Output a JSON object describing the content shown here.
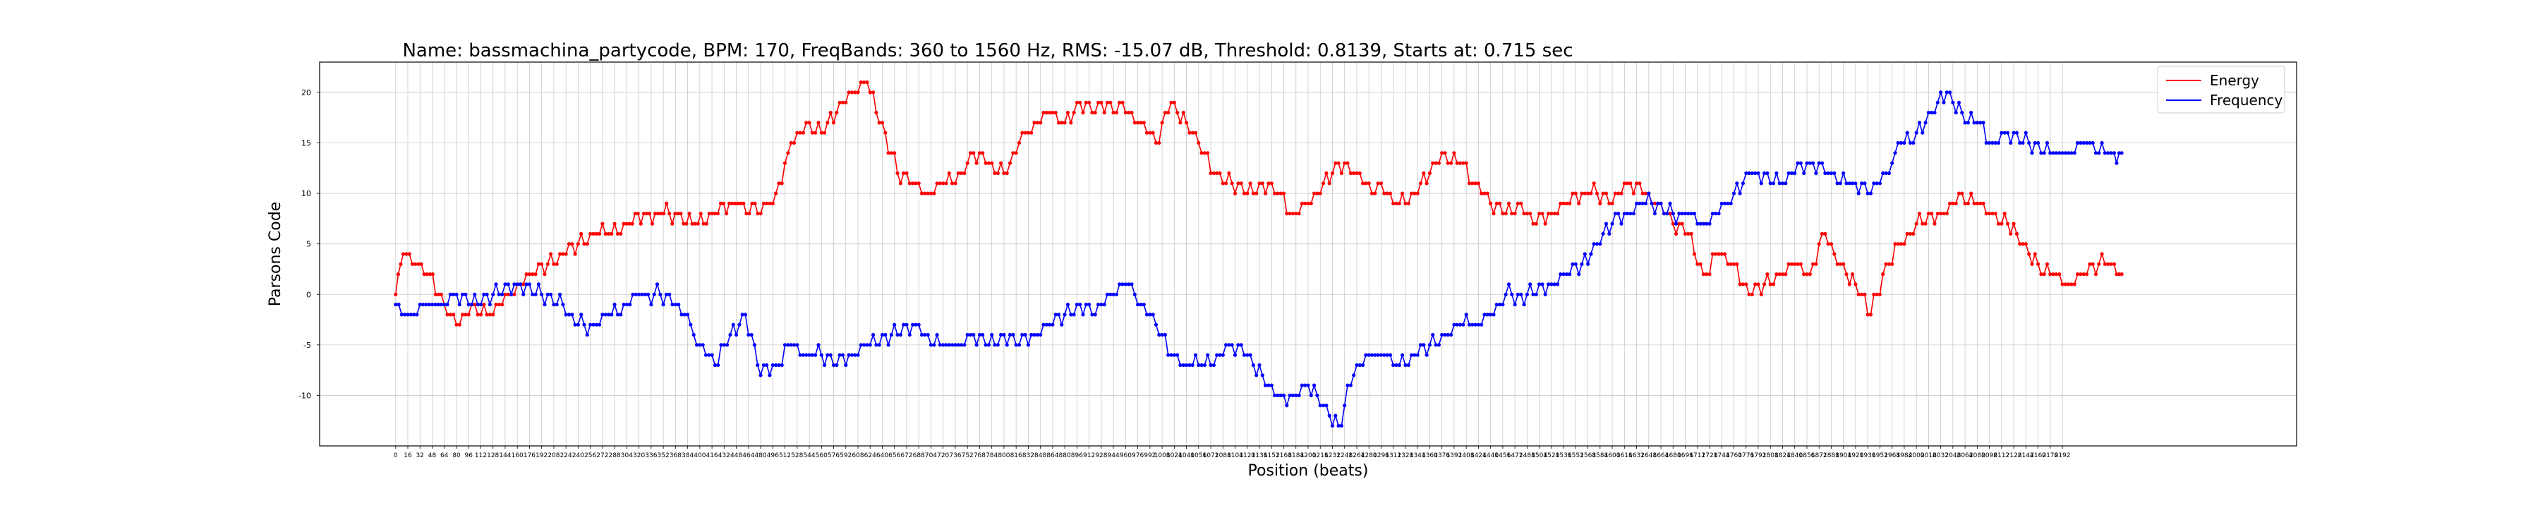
{
  "colors": {
    "energy": "#ff0000",
    "frequency": "#0000ff",
    "grid": "#c8c8c8",
    "axes": "#000000"
  },
  "legend": {
    "placement": "top-right",
    "entries": [
      "Energy",
      "Frequency"
    ]
  },
  "chart_data": {
    "type": "line",
    "title": "Name: bassmachina_partycode, BPM: 170, FreqBands: 360 to 1560 Hz, RMS: -15.07 dB, Threshold: 0.8139, Starts at: 0.715 sec",
    "xlabel": "Position (beats)",
    "ylabel": "Parsons Code",
    "xlim": [
      -100,
      2500
    ],
    "ylim": [
      -15,
      23
    ],
    "grid": true,
    "marker": "dot",
    "yticks": [
      -10,
      -5,
      0,
      5,
      10,
      15,
      20
    ],
    "xtick_step": 16,
    "xtick_max": 2192,
    "series": [
      {
        "name": "Energy",
        "color": "#ff0000",
        "points": [
          [
            0,
            0
          ],
          [
            10,
            4
          ],
          [
            30,
            3
          ],
          [
            45,
            2
          ],
          [
            60,
            0
          ],
          [
            80,
            -3
          ],
          [
            100,
            -1
          ],
          [
            120,
            -2
          ],
          [
            140,
            -1
          ],
          [
            160,
            1
          ],
          [
            180,
            2
          ],
          [
            200,
            3
          ],
          [
            220,
            4
          ],
          [
            240,
            5
          ],
          [
            260,
            6
          ],
          [
            280,
            6
          ],
          [
            300,
            7
          ],
          [
            330,
            8
          ],
          [
            360,
            8
          ],
          [
            390,
            7
          ],
          [
            420,
            8
          ],
          [
            450,
            9
          ],
          [
            480,
            8
          ],
          [
            500,
            10
          ],
          [
            520,
            15
          ],
          [
            540,
            17
          ],
          [
            560,
            16
          ],
          [
            580,
            18
          ],
          [
            600,
            20
          ],
          [
            620,
            21
          ],
          [
            640,
            17
          ],
          [
            660,
            12
          ],
          [
            680,
            11
          ],
          [
            700,
            10
          ],
          [
            720,
            11
          ],
          [
            740,
            12
          ],
          [
            760,
            14
          ],
          [
            780,
            13
          ],
          [
            800,
            12
          ],
          [
            820,
            15
          ],
          [
            840,
            17
          ],
          [
            860,
            18
          ],
          [
            880,
            17
          ],
          [
            900,
            19
          ],
          [
            920,
            18
          ],
          [
            940,
            19
          ],
          [
            960,
            18
          ],
          [
            980,
            17
          ],
          [
            1000,
            15
          ],
          [
            1020,
            19
          ],
          [
            1040,
            17
          ],
          [
            1060,
            14
          ],
          [
            1080,
            12
          ],
          [
            1100,
            11
          ],
          [
            1120,
            10
          ],
          [
            1140,
            11
          ],
          [
            1160,
            10
          ],
          [
            1180,
            8
          ],
          [
            1200,
            9
          ],
          [
            1220,
            11
          ],
          [
            1240,
            13
          ],
          [
            1260,
            12
          ],
          [
            1280,
            11
          ],
          [
            1300,
            10
          ],
          [
            1320,
            9
          ],
          [
            1340,
            10
          ],
          [
            1360,
            12
          ],
          [
            1380,
            14
          ],
          [
            1400,
            13
          ],
          [
            1420,
            11
          ],
          [
            1440,
            9
          ],
          [
            1460,
            8
          ],
          [
            1480,
            9
          ],
          [
            1500,
            7
          ],
          [
            1520,
            8
          ],
          [
            1540,
            9
          ],
          [
            1560,
            10
          ],
          [
            1580,
            10
          ],
          [
            1600,
            9
          ],
          [
            1620,
            11
          ],
          [
            1640,
            10
          ],
          [
            1660,
            9
          ],
          [
            1680,
            7
          ],
          [
            1700,
            6
          ],
          [
            1720,
            2
          ],
          [
            1740,
            4
          ],
          [
            1760,
            3
          ],
          [
            1780,
            0
          ],
          [
            1800,
            1
          ],
          [
            1820,
            2
          ],
          [
            1840,
            3
          ],
          [
            1860,
            2
          ],
          [
            1880,
            6
          ],
          [
            1900,
            3
          ],
          [
            1920,
            1
          ],
          [
            1940,
            -2
          ],
          [
            1960,
            3
          ],
          [
            1980,
            5
          ],
          [
            2000,
            7
          ],
          [
            2020,
            8
          ],
          [
            2040,
            8
          ],
          [
            2060,
            10
          ],
          [
            2080,
            9
          ],
          [
            2100,
            8
          ],
          [
            2120,
            7
          ],
          [
            2140,
            5
          ],
          [
            2160,
            3
          ],
          [
            2180,
            2
          ],
          [
            2200,
            1
          ],
          [
            2220,
            2
          ],
          [
            2240,
            3
          ],
          [
            2260,
            3
          ],
          [
            2270,
            2
          ]
        ]
      },
      {
        "name": "Frequency",
        "color": "#0000ff",
        "points": [
          [
            0,
            -1
          ],
          [
            20,
            -2
          ],
          [
            40,
            -1
          ],
          [
            60,
            -1
          ],
          [
            80,
            0
          ],
          [
            100,
            -1
          ],
          [
            120,
            0
          ],
          [
            140,
            0
          ],
          [
            160,
            1
          ],
          [
            180,
            0
          ],
          [
            200,
            0
          ],
          [
            220,
            -1
          ],
          [
            240,
            -3
          ],
          [
            260,
            -3
          ],
          [
            280,
            -2
          ],
          [
            300,
            -1
          ],
          [
            320,
            0
          ],
          [
            340,
            0
          ],
          [
            360,
            0
          ],
          [
            380,
            -2
          ],
          [
            400,
            -5
          ],
          [
            420,
            -7
          ],
          [
            440,
            -4
          ],
          [
            460,
            -2
          ],
          [
            480,
            -8
          ],
          [
            500,
            -7
          ],
          [
            520,
            -5
          ],
          [
            540,
            -6
          ],
          [
            560,
            -6
          ],
          [
            580,
            -7
          ],
          [
            600,
            -6
          ],
          [
            620,
            -5
          ],
          [
            640,
            -4
          ],
          [
            660,
            -4
          ],
          [
            680,
            -3
          ],
          [
            700,
            -4
          ],
          [
            720,
            -5
          ],
          [
            740,
            -5
          ],
          [
            760,
            -4
          ],
          [
            780,
            -5
          ],
          [
            800,
            -4
          ],
          [
            820,
            -5
          ],
          [
            840,
            -4
          ],
          [
            860,
            -3
          ],
          [
            880,
            -2
          ],
          [
            900,
            -1
          ],
          [
            920,
            -2
          ],
          [
            940,
            0
          ],
          [
            960,
            1
          ],
          [
            980,
            -1
          ],
          [
            1000,
            -3
          ],
          [
            1020,
            -6
          ],
          [
            1040,
            -7
          ],
          [
            1060,
            -7
          ],
          [
            1080,
            -6
          ],
          [
            1100,
            -5
          ],
          [
            1120,
            -6
          ],
          [
            1140,
            -8
          ],
          [
            1160,
            -10
          ],
          [
            1180,
            -10
          ],
          [
            1200,
            -9
          ],
          [
            1220,
            -11
          ],
          [
            1240,
            -13
          ],
          [
            1260,
            -8
          ],
          [
            1280,
            -6
          ],
          [
            1300,
            -6
          ],
          [
            1320,
            -7
          ],
          [
            1340,
            -6
          ],
          [
            1360,
            -5
          ],
          [
            1380,
            -4
          ],
          [
            1400,
            -3
          ],
          [
            1420,
            -3
          ],
          [
            1440,
            -2
          ],
          [
            1460,
            0
          ],
          [
            1480,
            0
          ],
          [
            1500,
            0
          ],
          [
            1520,
            1
          ],
          [
            1540,
            2
          ],
          [
            1560,
            3
          ],
          [
            1580,
            5
          ],
          [
            1600,
            7
          ],
          [
            1620,
            8
          ],
          [
            1640,
            9
          ],
          [
            1660,
            9
          ],
          [
            1680,
            8
          ],
          [
            1700,
            8
          ],
          [
            1720,
            7
          ],
          [
            1740,
            8
          ],
          [
            1760,
            10
          ],
          [
            1780,
            12
          ],
          [
            1800,
            12
          ],
          [
            1820,
            11
          ],
          [
            1840,
            12
          ],
          [
            1860,
            13
          ],
          [
            1880,
            12
          ],
          [
            1900,
            11
          ],
          [
            1920,
            11
          ],
          [
            1940,
            10
          ],
          [
            1960,
            12
          ],
          [
            1980,
            15
          ],
          [
            2000,
            16
          ],
          [
            2020,
            18
          ],
          [
            2040,
            20
          ],
          [
            2060,
            18
          ],
          [
            2080,
            17
          ],
          [
            2100,
            15
          ],
          [
            2120,
            16
          ],
          [
            2140,
            15
          ],
          [
            2160,
            15
          ],
          [
            2180,
            14
          ],
          [
            2200,
            14
          ],
          [
            2220,
            15
          ],
          [
            2240,
            14
          ],
          [
            2260,
            14
          ],
          [
            2270,
            14
          ]
        ]
      }
    ]
  }
}
